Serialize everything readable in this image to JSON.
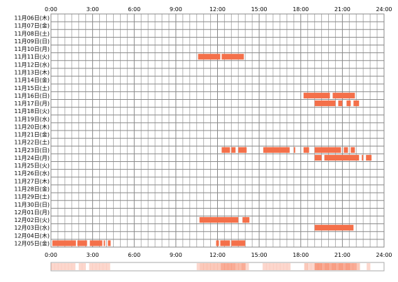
{
  "chart_data": {
    "type": "timeline",
    "title": "",
    "xlabel": "",
    "ylabel": "",
    "x_unit": "hours",
    "xlim": [
      0,
      24
    ],
    "x_ticks": [
      "0:00",
      "3:00",
      "6:00",
      "9:00",
      "12:00",
      "15:00",
      "18:00",
      "21:00",
      "24:00"
    ],
    "grid": true,
    "bar_color": "#f4704a",
    "summary_color": "#f4704a",
    "dates": [
      "11月06日(木)",
      "11月07日(金)",
      "11月08日(土)",
      "11月09日(日)",
      "11月10日(月)",
      "11月11日(火)",
      "11月12日(水)",
      "11月13日(木)",
      "11月14日(金)",
      "11月15日(土)",
      "11月16日(日)",
      "11月17日(月)",
      "11月18日(火)",
      "11月19日(水)",
      "11月20日(木)",
      "11月21日(金)",
      "11月22日(土)",
      "11月23日(日)",
      "11月24日(月)",
      "11月25日(火)",
      "11月26日(水)",
      "11月27日(木)",
      "11月28日(金)",
      "11月29日(土)",
      "11月30日(日)",
      "12月01日(月)",
      "12月02日(火)",
      "12月03日(水)",
      "12月04日(木)",
      "12月05日(金)"
    ],
    "rows": [
      {
        "date": "11月06日(木)",
        "intervals": []
      },
      {
        "date": "11月07日(金)",
        "intervals": []
      },
      {
        "date": "11月08日(土)",
        "intervals": []
      },
      {
        "date": "11月09日(日)",
        "intervals": []
      },
      {
        "date": "11月10日(月)",
        "intervals": []
      },
      {
        "date": "11月11日(火)",
        "intervals": [
          [
            10.6,
            12.2
          ],
          [
            12.3,
            13.9
          ]
        ]
      },
      {
        "date": "11月12日(水)",
        "intervals": []
      },
      {
        "date": "11月13日(木)",
        "intervals": []
      },
      {
        "date": "11月14日(金)",
        "intervals": []
      },
      {
        "date": "11月15日(土)",
        "intervals": []
      },
      {
        "date": "11月16日(日)",
        "intervals": [
          [
            18.2,
            20.1
          ],
          [
            20.3,
            21.9
          ]
        ]
      },
      {
        "date": "11月17日(月)",
        "intervals": [
          [
            19.0,
            20.5
          ],
          [
            20.7,
            21.0
          ],
          [
            21.3,
            21.6
          ],
          [
            21.8,
            22.2
          ]
        ]
      },
      {
        "date": "11月18日(火)",
        "intervals": []
      },
      {
        "date": "11月19日(水)",
        "intervals": []
      },
      {
        "date": "11月20日(木)",
        "intervals": []
      },
      {
        "date": "11月21日(金)",
        "intervals": []
      },
      {
        "date": "11月22日(土)",
        "intervals": []
      },
      {
        "date": "11月23日(日)",
        "intervals": [
          [
            12.3,
            12.9
          ],
          [
            13.0,
            13.3
          ],
          [
            13.5,
            14.1
          ],
          [
            15.3,
            17.2
          ],
          [
            17.5,
            17.6
          ],
          [
            18.2,
            18.6
          ],
          [
            19.0,
            20.9
          ],
          [
            21.1,
            21.4
          ],
          [
            21.6,
            21.9
          ]
        ]
      },
      {
        "date": "11月24日(月)",
        "intervals": [
          [
            19.0,
            19.5
          ],
          [
            19.7,
            22.2
          ],
          [
            22.4,
            22.5
          ],
          [
            22.7,
            23.1
          ]
        ]
      },
      {
        "date": "11月25日(火)",
        "intervals": []
      },
      {
        "date": "11月26日(水)",
        "intervals": []
      },
      {
        "date": "11月27日(木)",
        "intervals": []
      },
      {
        "date": "11月28日(金)",
        "intervals": []
      },
      {
        "date": "11月29日(土)",
        "intervals": []
      },
      {
        "date": "11月30日(日)",
        "intervals": []
      },
      {
        "date": "12月01日(月)",
        "intervals": []
      },
      {
        "date": "12月02日(火)",
        "intervals": [
          [
            10.7,
            13.5
          ],
          [
            13.8,
            14.3
          ]
        ]
      },
      {
        "date": "12月03日(水)",
        "intervals": [
          [
            19.0,
            21.8
          ]
        ]
      },
      {
        "date": "12月04日(木)",
        "intervals": []
      },
      {
        "date": "12月05日(金)",
        "intervals": [
          [
            0.1,
            1.8
          ],
          [
            1.9,
            2.6
          ],
          [
            2.8,
            3.7
          ],
          [
            3.8,
            3.9
          ],
          [
            4.1,
            4.3
          ],
          [
            11.9,
            12.1
          ],
          [
            12.2,
            12.9
          ],
          [
            13.0,
            14.0
          ]
        ]
      }
    ]
  }
}
